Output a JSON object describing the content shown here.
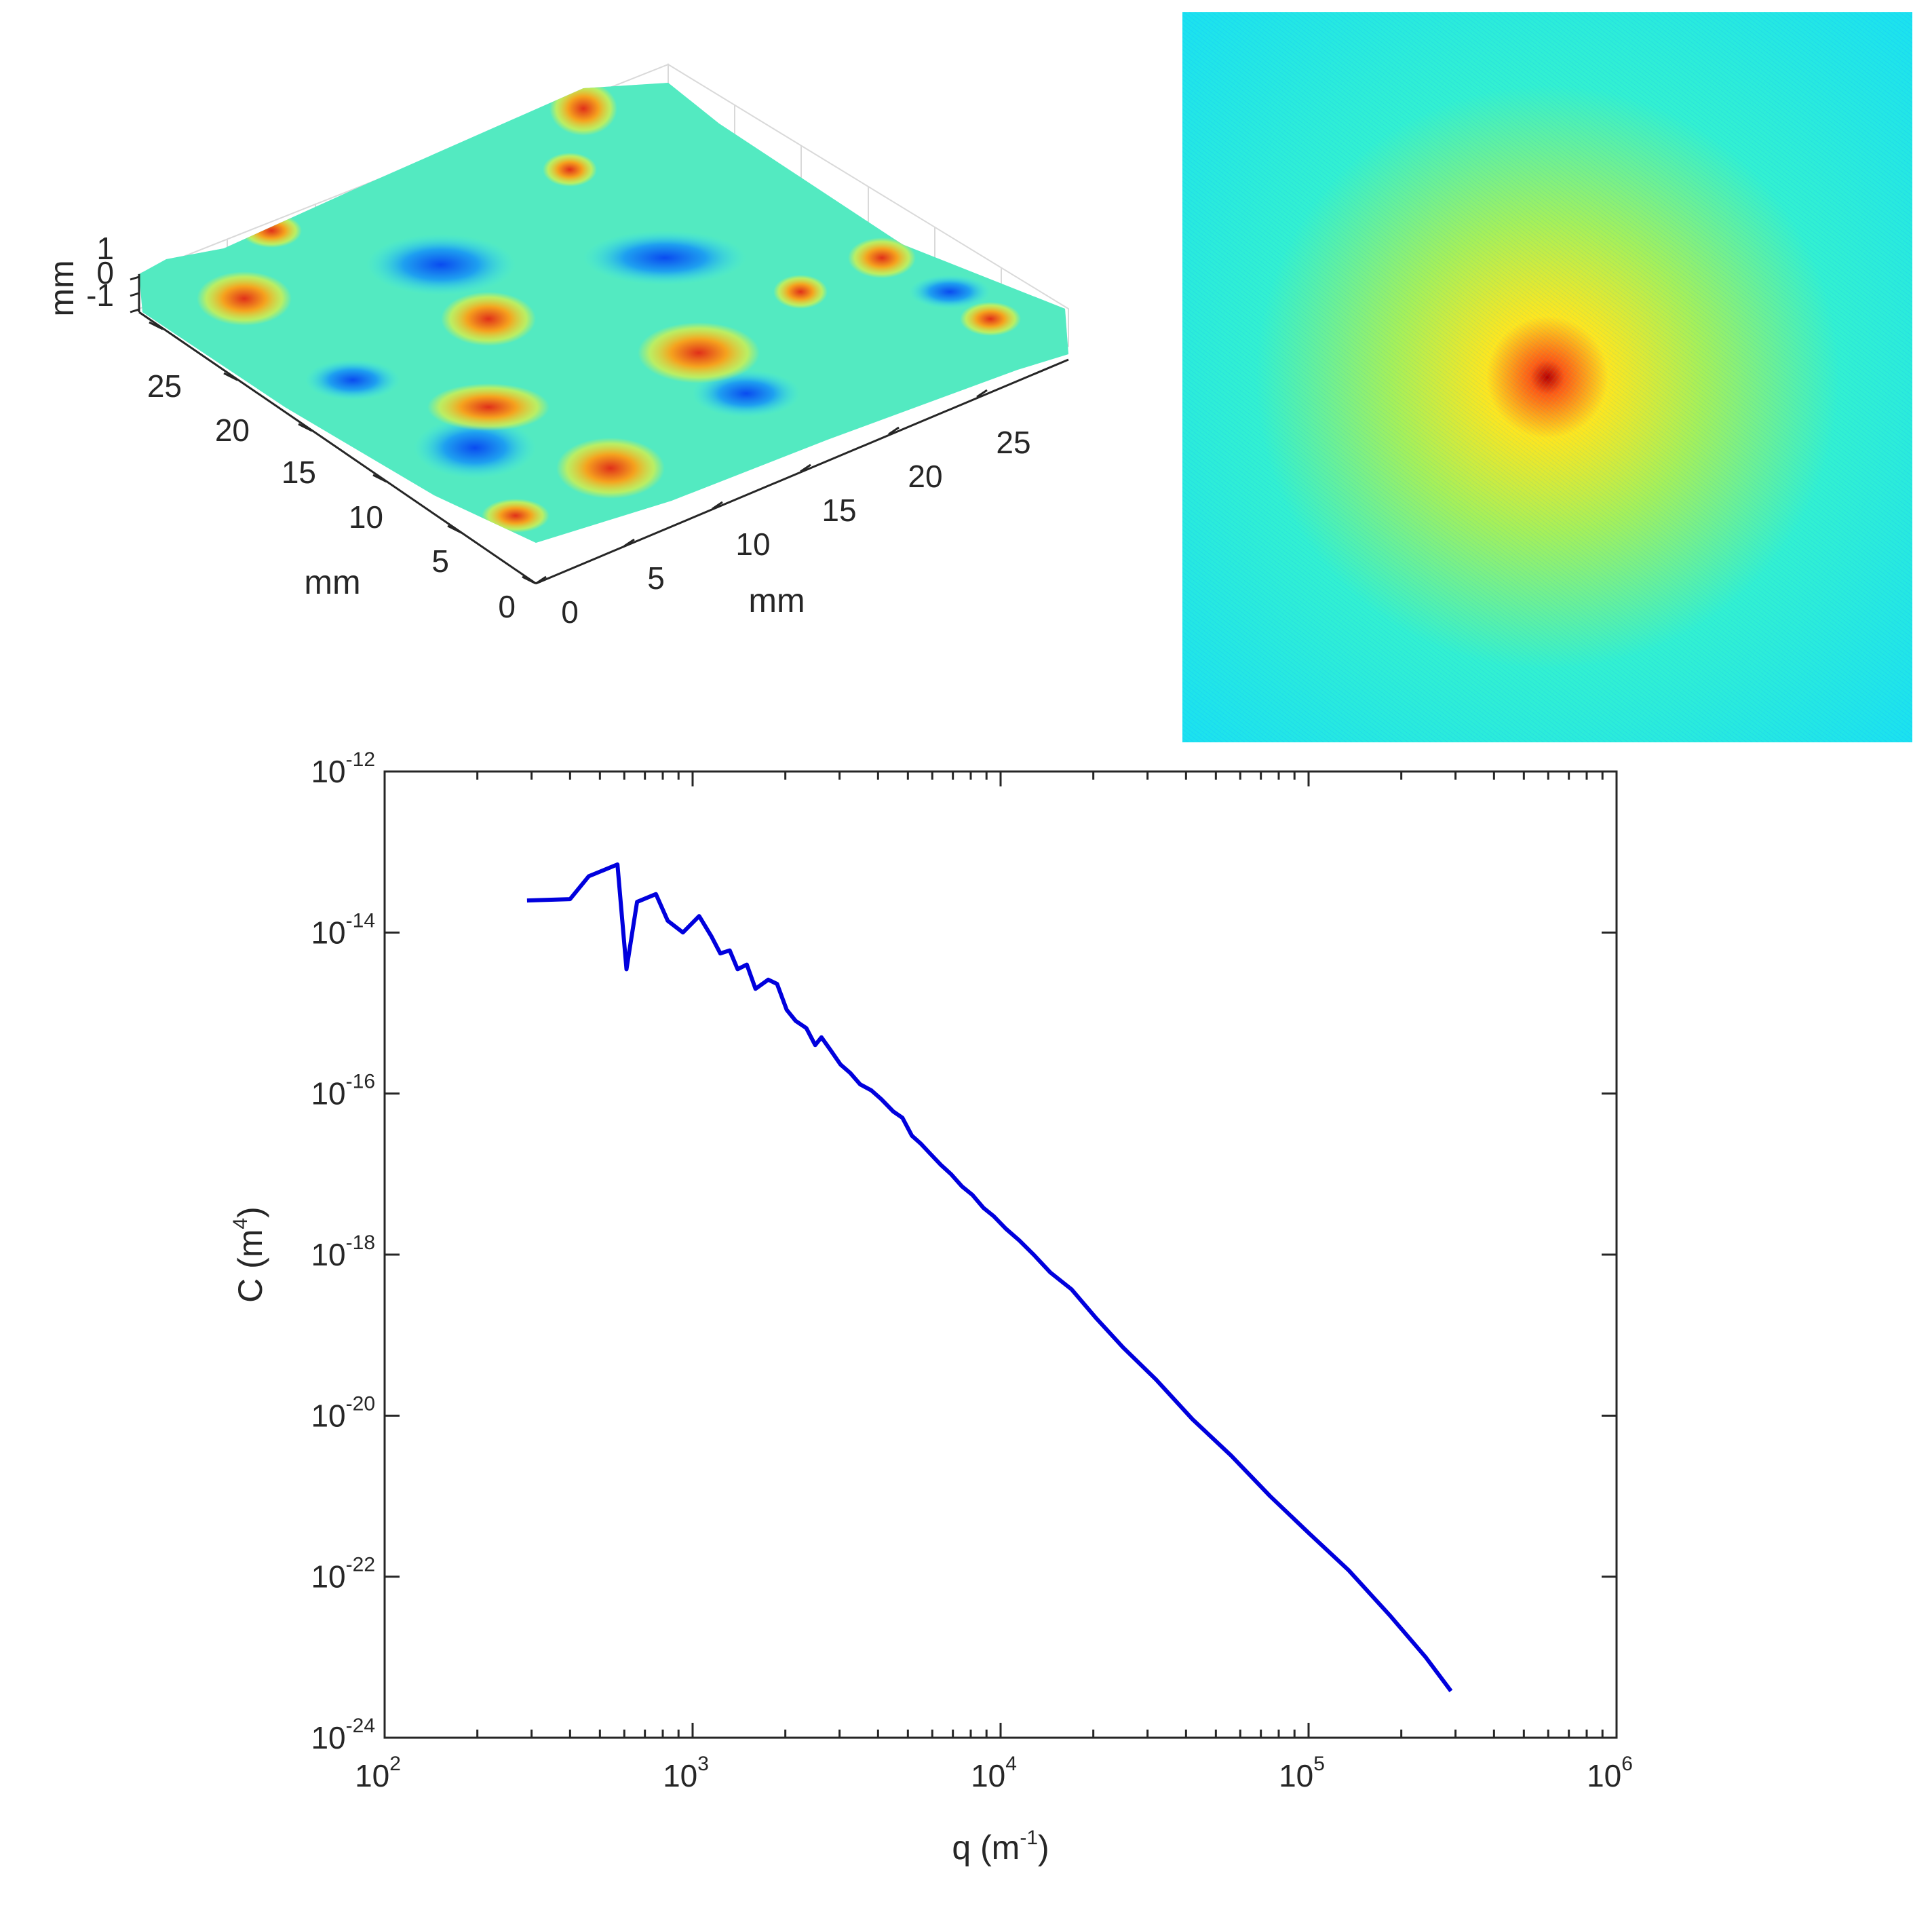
{
  "surface_plot": {
    "zlabel": "mm",
    "xlabel": "mm",
    "ylabel": "mm",
    "z_ticks": [
      "1",
      "0",
      "-1"
    ],
    "x_ticks": [
      "0",
      "5",
      "10",
      "15",
      "20",
      "25"
    ],
    "y_ticks": [
      "0",
      "5",
      "10",
      "15",
      "20",
      "25"
    ],
    "colormap": [
      "#0a4bf0",
      "#1ea0f0",
      "#3ce6e6",
      "#7ff07a",
      "#e6f03c",
      "#f5a21e",
      "#e0301a"
    ]
  },
  "spectrum_image": {
    "colors": {
      "center": "#b80000",
      "inner": "#ff5a14",
      "mid": "#ffe61e",
      "ring": "#a6f05a",
      "outer": "#32f0d2",
      "edge": "#1ae0f2"
    }
  },
  "chart_data": {
    "type": "line",
    "title": "",
    "xlabel": "q (m",
    "xlabel_exp": "-1",
    "xlabel_close": ")",
    "ylabel": "C (m",
    "ylabel_exp": "4",
    "ylabel_close": ")",
    "xscale": "log",
    "yscale": "log",
    "xlim": [
      100,
      1000000
    ],
    "ylim": [
      1e-24,
      1e-12
    ],
    "x_ticks": [
      {
        "base": "10",
        "exp": "2"
      },
      {
        "base": "10",
        "exp": "3"
      },
      {
        "base": "10",
        "exp": "4"
      },
      {
        "base": "10",
        "exp": "5"
      },
      {
        "base": "10",
        "exp": "6"
      }
    ],
    "y_ticks": [
      {
        "base": "10",
        "exp": "-12"
      },
      {
        "base": "10",
        "exp": "-14"
      },
      {
        "base": "10",
        "exp": "-16"
      },
      {
        "base": "10",
        "exp": "-18"
      },
      {
        "base": "10",
        "exp": "-20"
      },
      {
        "base": "10",
        "exp": "-22"
      },
      {
        "base": "10",
        "exp": "-24"
      }
    ],
    "grid": false,
    "line_color": "#0000dd",
    "series": [
      {
        "x": [
          290,
          400,
          460,
          570,
          610,
          660,
          760,
          830,
          930,
          1050,
          1150,
          1230,
          1320,
          1400,
          1500,
          1600,
          1760,
          1880,
          2020,
          2160,
          2340,
          2500,
          2620,
          2800,
          3020,
          3250,
          3500,
          3800,
          4100,
          4480,
          4800,
          5150,
          5500,
          5900,
          6400,
          6900,
          7500,
          8100,
          8800,
          9500,
          10400,
          11500,
          12800,
          14500,
          17000,
          20500,
          25000,
          32000,
          42000,
          56000,
          75000,
          100000,
          135000,
          185000,
          240000,
          290000
        ],
        "y": [
          2.5e-14,
          2.6e-14,
          5e-14,
          7e-14,
          3.5e-15,
          2.4e-14,
          3e-14,
          1.4e-14,
          1e-14,
          1.6e-14,
          9e-15,
          5.5e-15,
          6e-15,
          3.5e-15,
          4e-15,
          2e-15,
          2.6e-15,
          2.3e-15,
          1.1e-15,
          8e-16,
          6.5e-16,
          4e-16,
          5e-16,
          3.5e-16,
          2.3e-16,
          1.8e-16,
          1.3e-16,
          1.1e-16,
          8.5e-17,
          6e-17,
          5e-17,
          3e-17,
          2.4e-17,
          1.8e-17,
          1.3e-17,
          1e-17,
          7e-18,
          5.5e-18,
          3.8e-18,
          3e-18,
          2.1e-18,
          1.5e-18,
          1e-18,
          6e-19,
          3.7e-19,
          1.6e-19,
          7e-20,
          2.8e-20,
          9e-21,
          3.2e-21,
          1e-21,
          3.5e-22,
          1.2e-22,
          3.2e-23,
          1e-23,
          3.8e-24
        ]
      }
    ]
  }
}
